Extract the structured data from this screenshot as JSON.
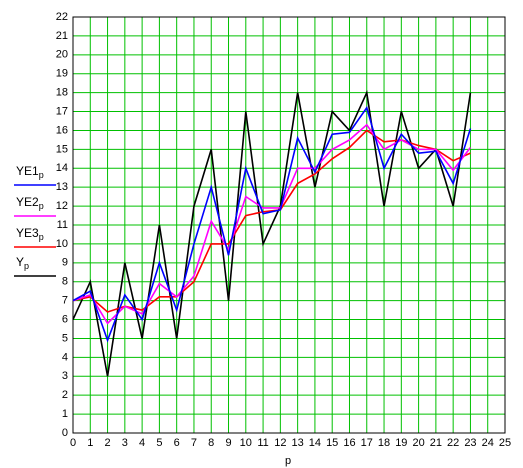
{
  "chart_data": {
    "type": "line",
    "xlabel": "p",
    "x": [
      0,
      1,
      2,
      3,
      4,
      5,
      6,
      7,
      8,
      9,
      10,
      11,
      12,
      13,
      14,
      15,
      16,
      17,
      18,
      19,
      20,
      21,
      22,
      23
    ],
    "series": [
      {
        "name": "YE1",
        "color": "#0000ff",
        "values": [
          7,
          7.5,
          4.9,
          7.3,
          6,
          9,
          6.5,
          10,
          13,
          9.4,
          14,
          11.6,
          11.8,
          15.6,
          13.8,
          15.8,
          15.9,
          17.2,
          14,
          15.8,
          14.8,
          14.9,
          13.2,
          16.1
        ]
      },
      {
        "name": "YE2",
        "color": "#ff00ff",
        "values": [
          7,
          7.3,
          5.8,
          6.7,
          6.3,
          7.9,
          7.2,
          8.3,
          11.2,
          9.7,
          12.5,
          11.9,
          11.9,
          14,
          14,
          15,
          15.5,
          16.3,
          15,
          15.5,
          15,
          15,
          13.9,
          15.1
        ]
      },
      {
        "name": "YE3",
        "color": "#ff0000",
        "values": [
          7,
          7.2,
          6.4,
          6.7,
          6.5,
          7.2,
          7.2,
          8,
          10,
          10,
          11.5,
          11.7,
          11.8,
          13.2,
          13.7,
          14.5,
          15.1,
          16,
          15.4,
          15.5,
          15.2,
          15,
          14.4,
          14.8
        ]
      },
      {
        "name": "Y",
        "color": "#000000",
        "values": [
          6,
          8,
          3,
          9,
          5,
          11,
          5,
          12,
          15,
          7,
          17,
          10,
          12,
          18,
          13,
          17,
          16,
          18,
          12,
          17,
          14,
          15,
          12,
          18
        ]
      }
    ],
    "xlim": [
      0,
      25
    ],
    "ylim": [
      0,
      22
    ],
    "xticks": [
      0,
      1,
      2,
      3,
      4,
      5,
      6,
      7,
      8,
      9,
      10,
      11,
      12,
      13,
      14,
      15,
      16,
      17,
      18,
      19,
      20,
      21,
      22,
      23,
      24,
      25
    ],
    "yticks": [
      0,
      1,
      2,
      3,
      4,
      5,
      6,
      7,
      8,
      9,
      10,
      11,
      12,
      13,
      14,
      15,
      16,
      17,
      18,
      19,
      20,
      21,
      22
    ],
    "grid": true,
    "grid_color": "#00c000"
  }
}
